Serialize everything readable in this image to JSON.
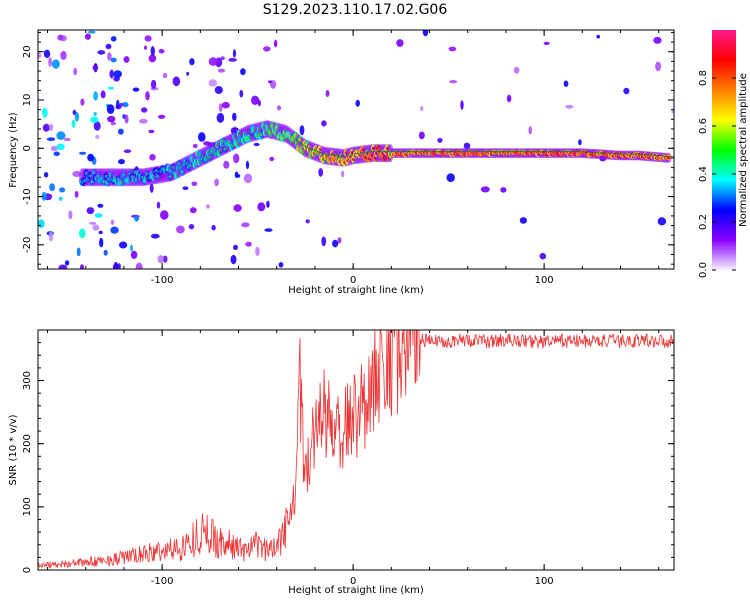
{
  "title": "S129.2023.110.17.02.G06",
  "chart_data": [
    {
      "type": "heatmap",
      "xlabel": "Height of straight line (km)",
      "ylabel": "Frequency (Hz)",
      "xlim": [
        -165,
        168
      ],
      "ylim": [
        -25,
        24.5
      ],
      "xticks": [
        -100,
        0,
        100
      ],
      "xtick_labels": [
        "-100",
        "0",
        "100"
      ],
      "yticks": [
        -20,
        -10,
        0,
        10,
        20
      ],
      "ytick_labels": [
        "-20",
        "-10",
        "0",
        "10",
        "20"
      ],
      "colorbar": {
        "label": "Normalized spectral amplitude",
        "range": [
          0,
          1
        ],
        "ticks": [
          0,
          0.2,
          0.4,
          0.6,
          0.8
        ],
        "tick_labels": [
          "0.0",
          "0.2",
          "0.4",
          "0.6",
          "0.8"
        ],
        "colors": [
          "#f5f0ff",
          "#8a00ff",
          "#0000ff",
          "#00ffff",
          "#00ff00",
          "#ffff00",
          "#ff7f00",
          "#ff0000",
          "#ff1a8c"
        ]
      },
      "ridge": {
        "x": [
          -140,
          -125,
          -110,
          -95,
          -85,
          -75,
          -65,
          -55,
          -45,
          -40,
          -35,
          -30,
          -25,
          -15,
          -5,
          0,
          10,
          20,
          40,
          60,
          80,
          100,
          120,
          140,
          150,
          165
        ],
        "y": [
          -6,
          -6,
          -6,
          -5,
          -3,
          -1,
          1,
          3,
          4,
          3.5,
          3,
          1.5,
          0,
          -1.5,
          -2,
          -1.5,
          -1,
          -1,
          -1,
          -1,
          -1,
          -1,
          -1,
          -1.5,
          -1.5,
          -2
        ],
        "amplitude": [
          0.4,
          0.45,
          0.45,
          0.45,
          0.45,
          0.5,
          0.5,
          0.5,
          0.55,
          0.6,
          0.6,
          0.65,
          0.7,
          0.8,
          0.8,
          0.85,
          0.88,
          0.9,
          0.9,
          0.9,
          0.9,
          0.92,
          0.92,
          0.9,
          0.88,
          0.9
        ]
      }
    },
    {
      "type": "line",
      "xlabel": "Height of straight line (km)",
      "ylabel": "SNR (10 * v/v)",
      "xlim": [
        -165,
        168
      ],
      "ylim": [
        0,
        380
      ],
      "xticks": [
        -100,
        0,
        100
      ],
      "xtick_labels": [
        "-100",
        "0",
        "100"
      ],
      "yticks": [
        0,
        100,
        200,
        300
      ],
      "ytick_labels": [
        "0",
        "100",
        "200",
        "300"
      ],
      "color": "#ee3333",
      "series": [
        {
          "x": [
            -165,
            -150,
            -140,
            -130,
            -120,
            -110,
            -100,
            -90,
            -85,
            -80,
            -75,
            -70,
            -65,
            -60,
            -55,
            -50,
            -45,
            -40,
            -35,
            -30,
            -28,
            -25,
            -20,
            -17,
            -13,
            -10,
            -5,
            0,
            5,
            10,
            15,
            20,
            25,
            30,
            35,
            40,
            50,
            60,
            70,
            80,
            90,
            100,
            110,
            120,
            130,
            140,
            150,
            160,
            168
          ],
          "y": [
            8,
            10,
            12,
            15,
            20,
            25,
            30,
            35,
            45,
            60,
            55,
            45,
            40,
            35,
            30,
            40,
            30,
            40,
            80,
            120,
            280,
            150,
            220,
            250,
            240,
            215,
            225,
            240,
            265,
            300,
            320,
            345,
            355,
            362,
            365,
            362,
            363,
            364,
            362,
            364,
            363,
            361,
            363,
            362,
            363,
            362,
            364,
            363,
            362
          ]
        }
      ]
    }
  ]
}
